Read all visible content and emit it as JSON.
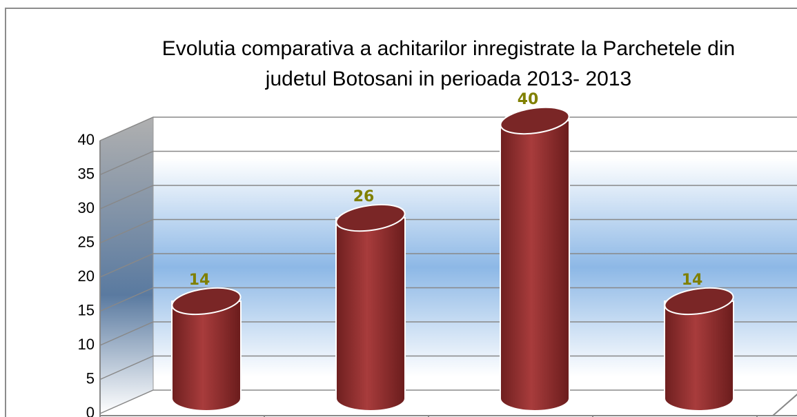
{
  "chart_data": {
    "type": "bar3d",
    "title": [
      "Evolutia comparativa a achitarilor inregistrate la Parchetele din",
      "judetul Botosani in perioada 2013- 2013"
    ],
    "categories": [
      null,
      null,
      null,
      null
    ],
    "values": [
      14,
      26,
      40,
      14
    ],
    "color": "#9a3535",
    "label_color": "#808000",
    "ylim": [
      0,
      40
    ],
    "yticks": [
      0,
      5,
      10,
      15,
      20,
      25,
      30,
      35,
      40
    ],
    "grid": true
  }
}
